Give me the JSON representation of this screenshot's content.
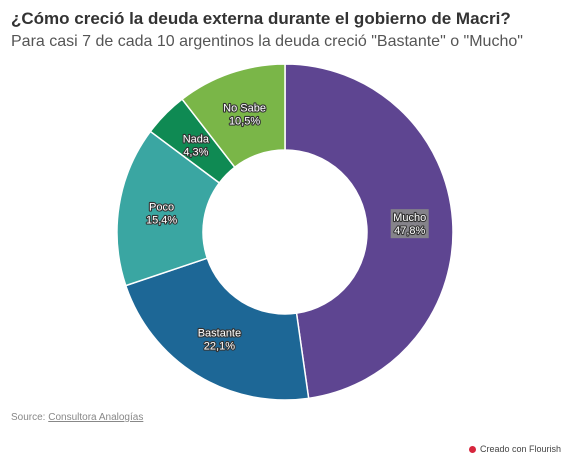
{
  "header": {
    "title": "¿Cómo creció la deuda externa durante el gobierno de Macri?",
    "subtitle": "Para casi 7 de cada 10 argentinos la deuda creció \"Bastante\" o \"Mucho\""
  },
  "footer": {
    "source_prefix": "Source: ",
    "source_link": "Consultora Analogías",
    "credit": "Creado con Flourish"
  },
  "chart_data": {
    "type": "pie",
    "donut": true,
    "start": "top, clockwise",
    "slices": [
      {
        "name": "Mucho",
        "value": 47.8,
        "label": "47,8%",
        "color": "#5e4591"
      },
      {
        "name": "Bastante",
        "value": 22.1,
        "label": "22,1%",
        "color": "#1d6796"
      },
      {
        "name": "Poco",
        "value": 15.4,
        "label": "15,4%",
        "color": "#3aa6a2"
      },
      {
        "name": "Nada",
        "value": 4.3,
        "label": "4,3%",
        "color": "#0f8a53"
      },
      {
        "name": "No Sabe",
        "value": 10.5,
        "label": "10,5%",
        "color": "#7ab648"
      }
    ]
  }
}
